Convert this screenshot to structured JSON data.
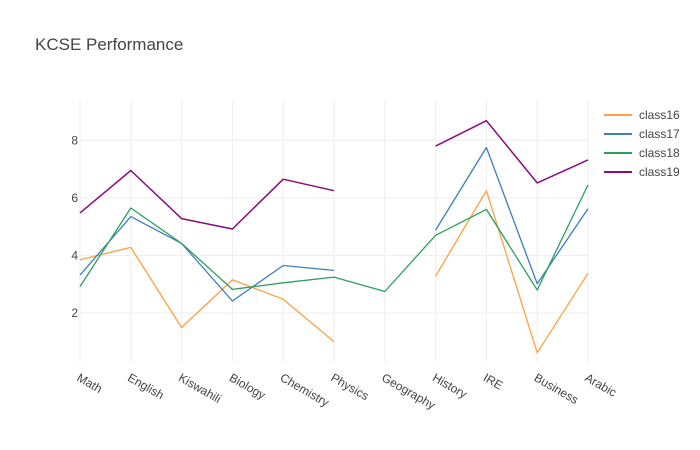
{
  "chart_data": {
    "type": "line",
    "title": "KCSE Performance",
    "xlabel": "",
    "ylabel": "",
    "categories": [
      "Math",
      "English",
      "Kiswahili",
      "Biology",
      "Chemistry",
      "Physics",
      "Geography",
      "History",
      "IRE",
      "Business",
      "Arabic"
    ],
    "yticks": [
      2,
      4,
      6,
      8
    ],
    "ylim": [
      0.3,
      9.4
    ],
    "grid": true,
    "legend_position": "top-right",
    "series": [
      {
        "name": "class16",
        "color": "#ff9f40",
        "values": [
          3.85,
          4.28,
          1.5,
          3.15,
          2.48,
          1.0,
          null,
          3.28,
          6.25,
          0.62,
          3.38
        ]
      },
      {
        "name": "class17",
        "color": "#3d7ebf",
        "values": [
          3.32,
          5.35,
          4.42,
          2.42,
          3.65,
          3.48,
          null,
          4.88,
          7.75,
          3.02,
          5.62
        ]
      },
      {
        "name": "class18",
        "color": "#2ca05a",
        "values": [
          2.92,
          5.65,
          4.42,
          2.82,
          3.05,
          3.25,
          2.75,
          4.7,
          5.6,
          2.8,
          6.45
        ]
      },
      {
        "name": "class19",
        "color": "#8b0a7c",
        "values": [
          5.48,
          6.95,
          5.28,
          4.92,
          6.65,
          6.25,
          null,
          7.8,
          8.68,
          6.52,
          7.32
        ]
      }
    ]
  }
}
